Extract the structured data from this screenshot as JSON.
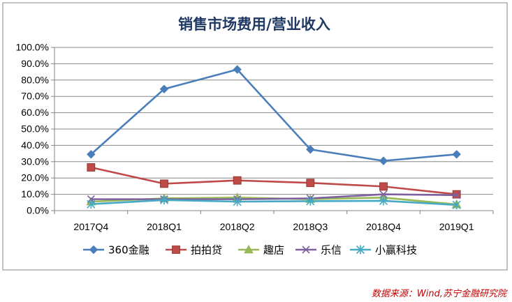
{
  "chart_data": {
    "type": "line",
    "title": "销售市场费用/营业收入",
    "categories": [
      "2017Q4",
      "2018Q1",
      "2018Q2",
      "2018Q3",
      "2018Q4",
      "2019Q1"
    ],
    "y_ticks": [
      "0.0%",
      "10.0%",
      "20.0%",
      "30.0%",
      "40.0%",
      "50.0%",
      "60.0%",
      "70.0%",
      "80.0%",
      "90.0%",
      "100.0%"
    ],
    "ylim": [
      0,
      100
    ],
    "grid": true,
    "legend_position": "bottom",
    "series": [
      {
        "name": "360金融",
        "color": "#4a7ebb",
        "marker": "diamond",
        "values": [
          34.5,
          74.5,
          86.5,
          37.5,
          30.5,
          34.5
        ]
      },
      {
        "name": "拍拍贷",
        "color": "#be4b48",
        "marker": "square",
        "values": [
          26.5,
          16.5,
          18.5,
          17.0,
          14.8,
          10.0
        ]
      },
      {
        "name": "趣店",
        "color": "#98b954",
        "marker": "triangle",
        "values": [
          5.5,
          7.5,
          8.0,
          7.0,
          8.0,
          3.8
        ]
      },
      {
        "name": "乐信",
        "color": "#7d60a0",
        "marker": "x",
        "values": [
          7.0,
          7.0,
          7.0,
          7.5,
          10.0,
          9.5
        ]
      },
      {
        "name": "小赢科技",
        "color": "#46aac5",
        "marker": "star",
        "values": [
          4.0,
          6.5,
          5.5,
          5.8,
          6.0,
          3.5
        ]
      }
    ]
  },
  "source_note": "数据来源：Wind,苏宁金融研究院"
}
